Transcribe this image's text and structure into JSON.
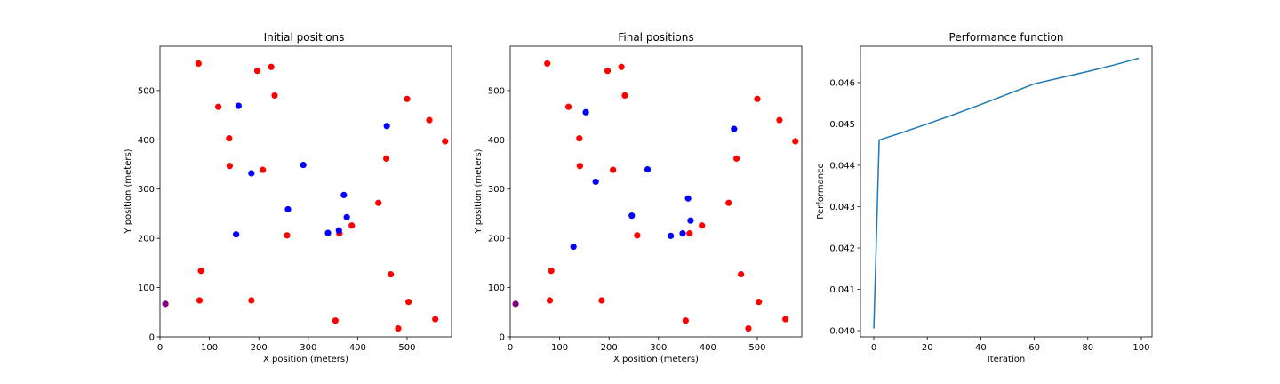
{
  "chart_data": [
    {
      "type": "scatter",
      "title": "Initial positions",
      "xlabel": "X position (meters)",
      "ylabel": "Y position (meters)",
      "xlim": [
        0,
        590
      ],
      "ylim": [
        0,
        590
      ],
      "xticks": [
        0,
        100,
        200,
        300,
        400,
        500
      ],
      "yticks": [
        0,
        100,
        200,
        300,
        400,
        500
      ],
      "grid": false,
      "series": [
        {
          "color": "#ff0000",
          "points": [
            [
              78,
              555
            ],
            [
              197,
              540
            ],
            [
              225,
              548
            ],
            [
              232,
              490
            ],
            [
              118,
              467
            ],
            [
              140,
              403
            ],
            [
              141,
              347
            ],
            [
              208,
              339
            ],
            [
              257,
              206
            ],
            [
              363,
              210
            ],
            [
              388,
              226
            ],
            [
              442,
              272
            ],
            [
              458,
              362
            ],
            [
              500,
              483
            ],
            [
              545,
              440
            ],
            [
              577,
              397
            ],
            [
              83,
              134
            ],
            [
              80,
              74
            ],
            [
              185,
              74
            ],
            [
              355,
              33
            ],
            [
              467,
              127
            ],
            [
              503,
              71
            ],
            [
              482,
              17
            ],
            [
              557,
              36
            ]
          ]
        },
        {
          "color": "#0000ff",
          "points": [
            [
              159,
              469
            ],
            [
              185,
              332
            ],
            [
              290,
              349
            ],
            [
              259,
              259
            ],
            [
              154,
              208
            ],
            [
              340,
              211
            ],
            [
              362,
              216
            ],
            [
              372,
              288
            ],
            [
              378,
              243
            ],
            [
              459,
              428
            ]
          ]
        },
        {
          "color": "#800080",
          "points": [
            [
              11,
              67
            ]
          ]
        }
      ]
    },
    {
      "type": "scatter",
      "title": "Final positions",
      "xlabel": "X position (meters)",
      "ylabel": "Y position (meters)",
      "xlim": [
        0,
        590
      ],
      "ylim": [
        0,
        590
      ],
      "xticks": [
        0,
        100,
        200,
        300,
        400,
        500
      ],
      "yticks": [
        0,
        100,
        200,
        300,
        400,
        500
      ],
      "grid": false,
      "series": [
        {
          "color": "#ff0000",
          "points": [
            [
              75,
              555
            ],
            [
              197,
              540
            ],
            [
              225,
              548
            ],
            [
              232,
              490
            ],
            [
              118,
              467
            ],
            [
              140,
              403
            ],
            [
              141,
              347
            ],
            [
              208,
              339
            ],
            [
              257,
              206
            ],
            [
              363,
              210
            ],
            [
              388,
              226
            ],
            [
              442,
              272
            ],
            [
              458,
              362
            ],
            [
              500,
              483
            ],
            [
              545,
              440
            ],
            [
              577,
              397
            ],
            [
              83,
              134
            ],
            [
              80,
              74
            ],
            [
              185,
              74
            ],
            [
              355,
              33
            ],
            [
              467,
              127
            ],
            [
              503,
              71
            ],
            [
              482,
              17
            ],
            [
              557,
              36
            ]
          ]
        },
        {
          "color": "#0000ff",
          "points": [
            [
              153,
              456
            ],
            [
              173,
              315
            ],
            [
              278,
              340
            ],
            [
              246,
              246
            ],
            [
              128,
              183
            ],
            [
              325,
              205
            ],
            [
              349,
              210
            ],
            [
              360,
              281
            ],
            [
              365,
              236
            ],
            [
              453,
              422
            ]
          ]
        },
        {
          "color": "#800080",
          "points": [
            [
              11,
              67
            ]
          ]
        }
      ]
    },
    {
      "type": "line",
      "title": "Performance function",
      "xlabel": "Iteration",
      "ylabel": "Performance",
      "xlim": [
        -5,
        104
      ],
      "ylim": [
        0.03985,
        0.04688
      ],
      "xticks": [
        0,
        20,
        40,
        60,
        80,
        100
      ],
      "yticks": [
        0.04,
        0.041,
        0.042,
        0.043,
        0.044,
        0.045,
        0.046
      ],
      "ytick_labels": [
        "0.040",
        "0.041",
        "0.042",
        "0.043",
        "0.044",
        "0.045",
        "0.046"
      ],
      "grid": false,
      "series": [
        {
          "color": "#1f77b4",
          "x": [
            0,
            2,
            10,
            20,
            30,
            40,
            50,
            60,
            70,
            80,
            90,
            99
          ],
          "values": [
            0.04005,
            0.04461,
            0.04478,
            0.045,
            0.04523,
            0.04547,
            0.04572,
            0.04597,
            0.04612,
            0.04627,
            0.04643,
            0.04659
          ]
        }
      ]
    }
  ]
}
